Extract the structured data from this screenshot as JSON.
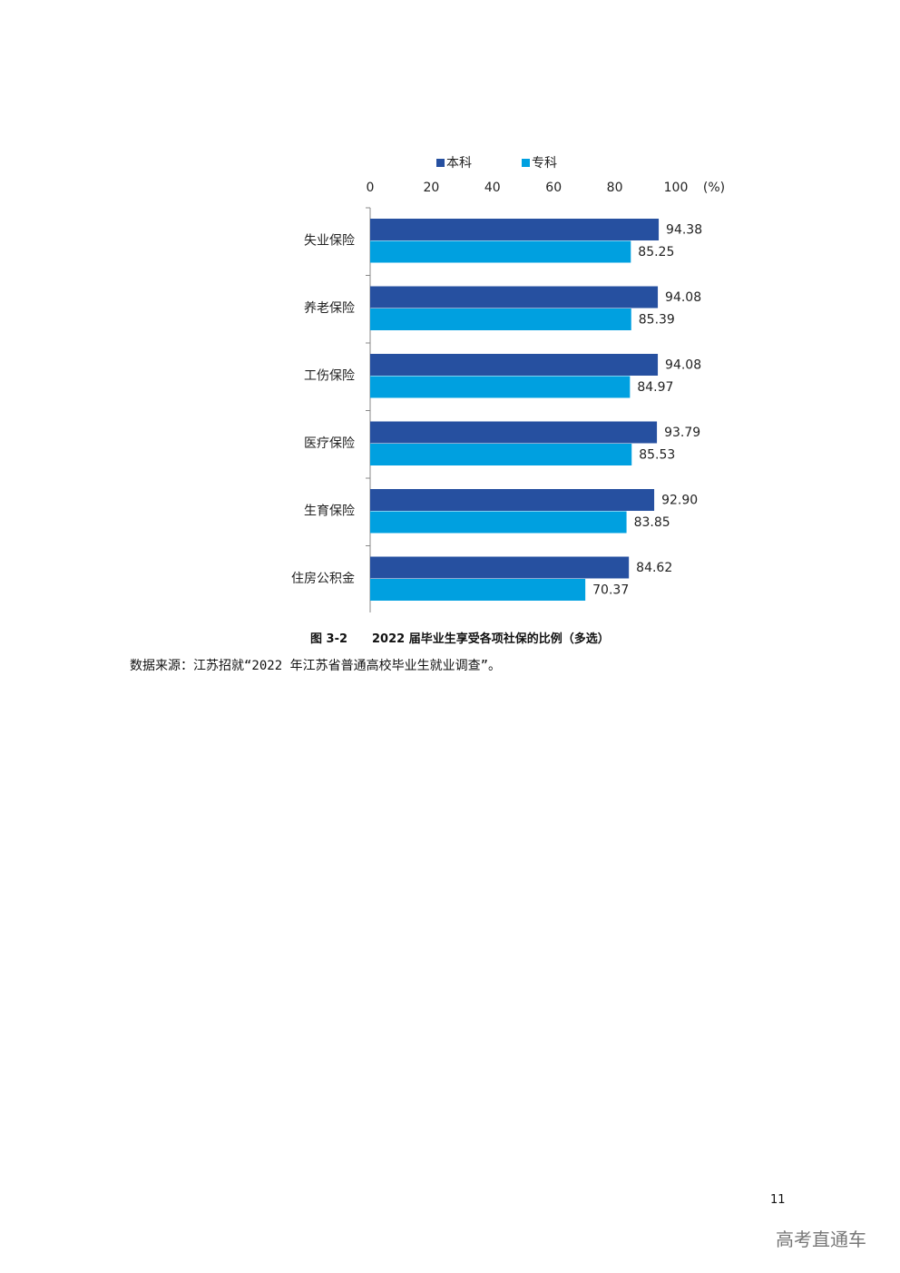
{
  "chart_data": {
    "type": "bar",
    "orientation": "horizontal",
    "categories": [
      "失业保险",
      "养老保险",
      "工伤保险",
      "医疗保险",
      "生育保险",
      "住房公积金"
    ],
    "series": [
      {
        "name": "本科",
        "color": "#2650a0",
        "values": [
          94.38,
          94.08,
          94.08,
          93.79,
          92.9,
          84.62
        ],
        "value_labels": [
          "94.38",
          "94.08",
          "94.08",
          "93.79",
          "92.90",
          "84.62"
        ]
      },
      {
        "name": "专科",
        "color": "#00a0e0",
        "values": [
          85.25,
          85.39,
          84.97,
          85.53,
          83.85,
          70.37
        ],
        "value_labels": [
          "85.25",
          "85.39",
          "84.97",
          "85.53",
          "83.85",
          "70.37"
        ]
      }
    ],
    "xlim": [
      0,
      100
    ],
    "xticks": [
      0,
      20,
      40,
      60,
      80,
      100
    ],
    "x_unit": "(%)",
    "legend": "top"
  },
  "caption": {
    "number": "图 3-2",
    "text": "2022 届毕业生享受各项社保的比例（多选）"
  },
  "source": "数据来源：江苏招就“2022 年江苏省普通高校毕业生就业调查”。",
  "page_number": "11",
  "watermark": "高考直通车"
}
